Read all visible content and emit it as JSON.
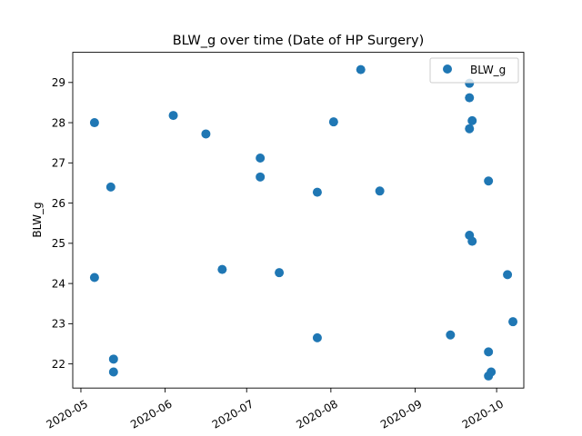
{
  "chart_data": {
    "type": "scatter",
    "title": "BLW_g over time (Date of HP Surgery)",
    "xlabel": "",
    "ylabel": "BLW_g",
    "xlim": [
      "2020-04-28",
      "2020-10-11"
    ],
    "ylim": [
      21.4,
      29.75
    ],
    "x_ticks": [
      "2020-05",
      "2020-06",
      "2020-07",
      "2020-08",
      "2020-09",
      "2020-10"
    ],
    "x_tick_dates": [
      "2020-05-01",
      "2020-06-01",
      "2020-07-01",
      "2020-08-01",
      "2020-09-01",
      "2020-10-01"
    ],
    "y_ticks": [
      22,
      23,
      24,
      25,
      26,
      27,
      28,
      29
    ],
    "grid": false,
    "legend": {
      "position": "top-right",
      "entries": [
        "BLW_g"
      ]
    },
    "series": [
      {
        "name": "BLW_g",
        "color": "#1f77b4",
        "points": [
          {
            "x": "2020-05-06",
            "y": 28.0
          },
          {
            "x": "2020-05-06",
            "y": 24.15
          },
          {
            "x": "2020-05-12",
            "y": 26.4
          },
          {
            "x": "2020-05-13",
            "y": 22.12
          },
          {
            "x": "2020-05-13",
            "y": 21.8
          },
          {
            "x": "2020-06-04",
            "y": 28.18
          },
          {
            "x": "2020-06-16",
            "y": 27.72
          },
          {
            "x": "2020-06-22",
            "y": 24.35
          },
          {
            "x": "2020-07-06",
            "y": 27.12
          },
          {
            "x": "2020-07-06",
            "y": 26.65
          },
          {
            "x": "2020-07-13",
            "y": 24.27
          },
          {
            "x": "2020-07-27",
            "y": 26.27
          },
          {
            "x": "2020-07-27",
            "y": 22.65
          },
          {
            "x": "2020-08-02",
            "y": 28.02
          },
          {
            "x": "2020-08-12",
            "y": 29.32
          },
          {
            "x": "2020-08-19",
            "y": 26.3
          },
          {
            "x": "2020-09-14",
            "y": 22.72
          },
          {
            "x": "2020-09-21",
            "y": 28.98
          },
          {
            "x": "2020-09-21",
            "y": 28.62
          },
          {
            "x": "2020-09-21",
            "y": 27.85
          },
          {
            "x": "2020-09-21",
            "y": 25.2
          },
          {
            "x": "2020-09-22",
            "y": 28.05
          },
          {
            "x": "2020-09-22",
            "y": 25.05
          },
          {
            "x": "2020-09-28",
            "y": 26.55
          },
          {
            "x": "2020-09-28",
            "y": 22.3
          },
          {
            "x": "2020-09-29",
            "y": 21.8
          },
          {
            "x": "2020-09-28",
            "y": 21.7
          },
          {
            "x": "2020-10-05",
            "y": 24.22
          },
          {
            "x": "2020-10-07",
            "y": 23.05
          }
        ]
      }
    ]
  }
}
